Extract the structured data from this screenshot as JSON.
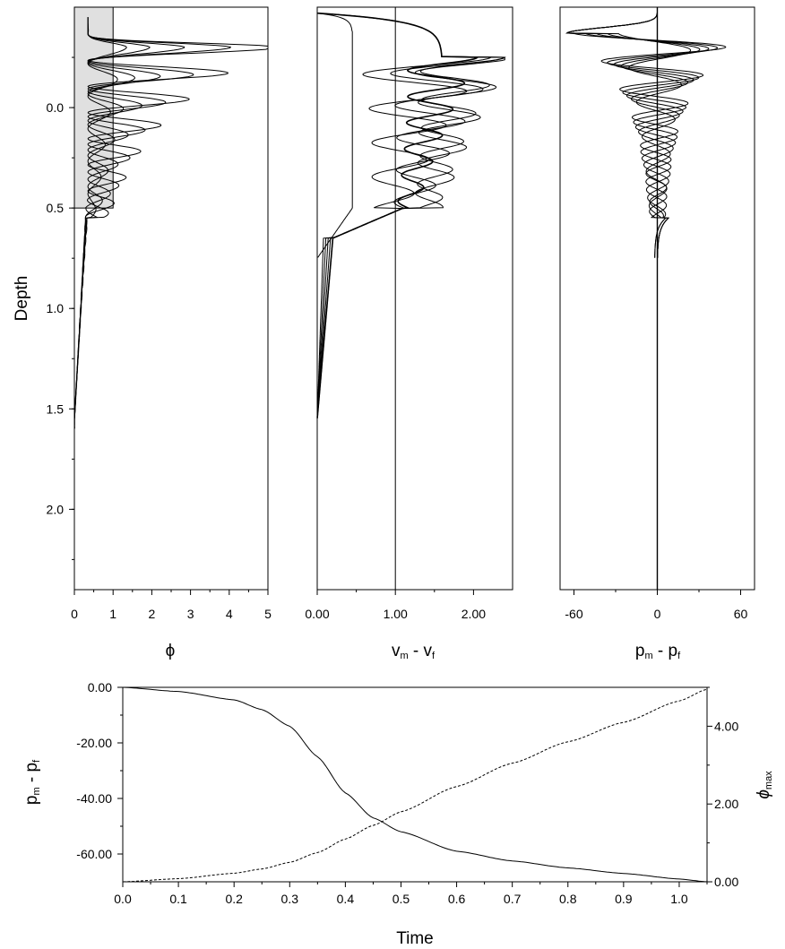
{
  "chart_data": [
    {
      "id": "porosity",
      "type": "line",
      "xlabel": "ϕ",
      "ylabel": "Depth",
      "xlim": [
        0,
        5
      ],
      "ylim": [
        2.4,
        -0.5
      ],
      "x_ticks": [
        "0",
        "1",
        "2",
        "3",
        "4",
        "5"
      ],
      "y_ticks": [
        "0.0",
        "0.5",
        "1.0",
        "1.5",
        "2.0"
      ],
      "highlight_box": {
        "x": [
          0,
          1
        ],
        "y": [
          -0.5,
          0.5
        ]
      },
      "series": [
        {
          "amplitude": 5.0,
          "decay": 0.4
        },
        {
          "amplitude": 3.7,
          "decay": 0.45
        },
        {
          "amplitude": 2.5,
          "decay": 0.5
        },
        {
          "amplitude": 1.6,
          "decay": 0.55
        },
        {
          "amplitude": 1.0,
          "decay": 0.6
        }
      ]
    },
    {
      "id": "velocity",
      "type": "line",
      "xlabel_main": "v",
      "xlabel_sub1": "m",
      "xlabel_sep": " - v",
      "xlabel_sub2": "f",
      "xlim": [
        0,
        2.5
      ],
      "ylim": [
        2.4,
        -0.5
      ],
      "x_ticks": [
        "0.00",
        "1.00",
        "2.00"
      ],
      "reference_line_x": 1.0
    },
    {
      "id": "pressure",
      "type": "line",
      "xlabel_main": "p",
      "xlabel_sub1": "m",
      "xlabel_sep": " - p",
      "xlabel_sub2": "f",
      "xlim": [
        -70,
        70
      ],
      "ylim": [
        2.4,
        -0.5
      ],
      "x_ticks": [
        "-60",
        "0",
        "60"
      ]
    },
    {
      "id": "time-series",
      "type": "line",
      "xlabel": "Time",
      "ylabel_main": "p",
      "ylabel_sub1": "m",
      "ylabel_sep": " - p",
      "ylabel_sub2": "f",
      "y2label_main": "ϕ",
      "y2label_sub": "max",
      "xlim": [
        0,
        1.05
      ],
      "ylim": [
        -70,
        0
      ],
      "y2lim": [
        0,
        5
      ],
      "x_ticks": [
        "0.0",
        "0.1",
        "0.2",
        "0.3",
        "0.4",
        "0.5",
        "0.6",
        "0.7",
        "0.8",
        "0.9",
        "1.0"
      ],
      "y_ticks": [
        "0.00",
        "-20.00",
        "-40.00",
        "-60.00"
      ],
      "y2_ticks": [
        "4.00",
        "2.00",
        "0.00"
      ],
      "series": [
        {
          "style": "solid",
          "x": [
            0,
            0.1,
            0.2,
            0.25,
            0.3,
            0.35,
            0.4,
            0.45,
            0.5,
            0.6,
            0.7,
            0.8,
            0.9,
            1.0,
            1.05
          ],
          "y": [
            0,
            -1.5,
            -4.5,
            -8,
            -14,
            -25,
            -38,
            -47,
            -52,
            -59,
            -62.5,
            -65,
            -67,
            -69,
            -70
          ]
        },
        {
          "style": "dashed",
          "x": [
            0,
            0.1,
            0.2,
            0.25,
            0.3,
            0.35,
            0.4,
            0.45,
            0.5,
            0.6,
            0.7,
            0.8,
            0.9,
            1.0,
            1.05
          ],
          "y2": [
            0,
            0.08,
            0.22,
            0.33,
            0.5,
            0.75,
            1.1,
            1.45,
            1.8,
            2.45,
            3.05,
            3.6,
            4.1,
            4.65,
            4.95
          ]
        }
      ]
    }
  ]
}
